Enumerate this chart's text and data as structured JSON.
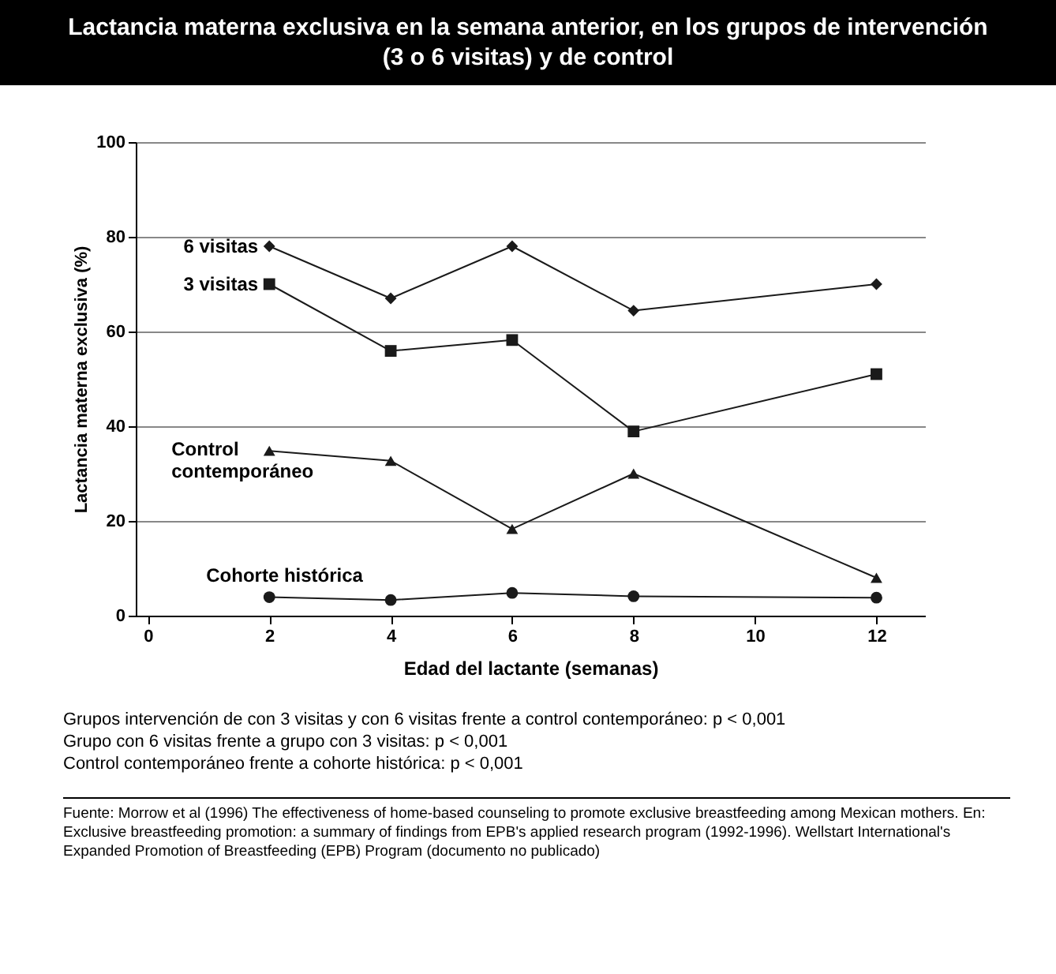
{
  "chart_data": {
    "type": "line",
    "title": "Lactancia materna exclusiva en la semana anterior, en los grupos de intervención (3 o 6 visitas) y de control",
    "xlabel": "Edad del lactante (semanas)",
    "ylabel": "Lactancia materna exclusiva (%)",
    "x": [
      2,
      4,
      6,
      8,
      12
    ],
    "xlim": [
      -0.2,
      12.8
    ],
    "xticks": [
      0,
      2,
      4,
      6,
      8,
      10,
      12
    ],
    "ylim": [
      0,
      100
    ],
    "yticks": [
      0,
      20,
      40,
      60,
      80,
      100
    ],
    "grid": "y",
    "line_style": "solid",
    "series": [
      {
        "name": "6 visitas",
        "color": "#1a1a1a",
        "marker": "diamond",
        "values": [
          78,
          67,
          78,
          64.4,
          70
        ]
      },
      {
        "name": "3 visitas",
        "color": "#1a1a1a",
        "marker": "square",
        "values": [
          70,
          55.9,
          58.2,
          38.9,
          51
        ]
      },
      {
        "name": "Control contemporáneo",
        "color": "#1a1a1a",
        "marker": "triangle",
        "values": [
          34.8,
          32.7,
          18.3,
          30,
          8
        ]
      },
      {
        "name": "Cohorte histórica",
        "color": "#1a1a1a",
        "marker": "circle",
        "values": [
          3.9,
          3.3,
          4.8,
          4.1,
          3.8
        ]
      }
    ],
    "annotations": [
      "Grupos intervención de con 3 visitas y con 6 visitas frente a control contemporáneo: p < 0,001",
      "Grupo con 6 visitas frente a grupo con 3 visitas: p < 0,001",
      "Control contemporáneo frente a cohorte histórica: p < 0,001",
      "Fuente: Morrow et al (1996) The effectiveness of home-based counseling to promote exclusive breastfeeding among Mexican mothers. En: Exclusive breastfeeding promotion: a summary of findings from EPB's applied research program (1992-1996). Wellstart International's Expanded Promotion of Breastfeeding (EPB) Program (documento no publicado)"
    ]
  }
}
